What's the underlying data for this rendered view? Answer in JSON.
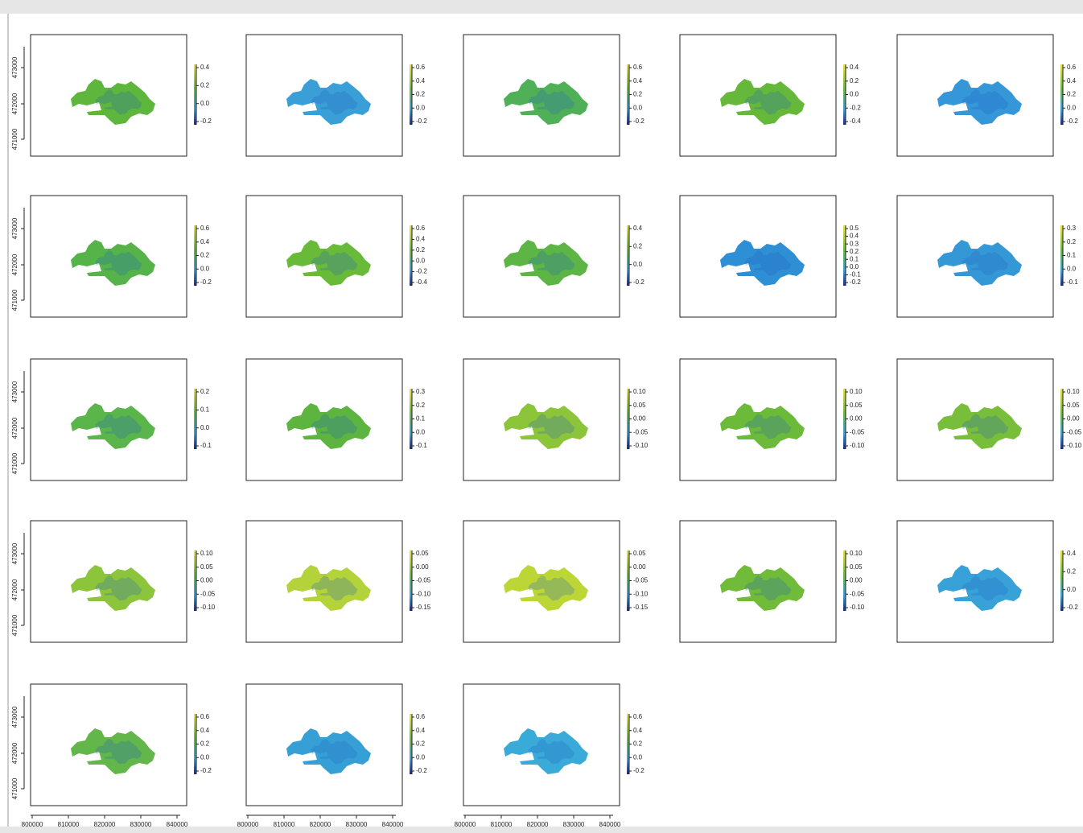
{
  "y_axis_labels": [
    "471000",
    "472000",
    "473000"
  ],
  "x_axis_labels": [
    "800000",
    "810000",
    "820000",
    "830000",
    "840000"
  ],
  "panels": [
    {
      "legend_ticks": [
        "0.4",
        "0.2",
        "0.0",
        "-0.2"
      ],
      "color": "#5fb63c"
    },
    {
      "legend_ticks": [
        "0.6",
        "0.4",
        "0.2",
        "0.0",
        "-0.2"
      ],
      "color": "#3a9fd6"
    },
    {
      "legend_ticks": [
        "0.6",
        "0.4",
        "0.2",
        "0.0",
        "-0.2"
      ],
      "color": "#4fb058"
    },
    {
      "legend_ticks": [
        "0.4",
        "0.2",
        "0.0",
        "-0.2",
        "-0.4"
      ],
      "color": "#66b83a"
    },
    {
      "legend_ticks": [
        "0.6",
        "0.4",
        "0.2",
        "0.0",
        "-0.2"
      ],
      "color": "#3596d8"
    },
    {
      "legend_ticks": [
        "0.6",
        "0.4",
        "0.2",
        "0.0",
        "-0.2"
      ],
      "color": "#55b34a"
    },
    {
      "legend_ticks": [
        "0.6",
        "0.4",
        "0.2",
        "0.0",
        "-0.2",
        "-0.4"
      ],
      "color": "#6aba3a"
    },
    {
      "legend_ticks": [
        "0.4",
        "0.2",
        "0.0",
        "-0.2"
      ],
      "color": "#5db546"
    },
    {
      "legend_ticks": [
        "0.5",
        "0.4",
        "0.3",
        "0.2",
        "0.1",
        "0.0",
        "-0.1",
        "-0.2"
      ],
      "color": "#2f8fd4"
    },
    {
      "legend_ticks": [
        "0.3",
        "0.2",
        "0.1",
        "0.0",
        "-0.1"
      ],
      "color": "#3598d6"
    },
    {
      "legend_ticks": [
        "0.2",
        "0.1",
        "0.0",
        "-0.1"
      ],
      "color": "#5ab54a"
    },
    {
      "legend_ticks": [
        "0.3",
        "0.2",
        "0.1",
        "0.0",
        "-0.1"
      ],
      "color": "#5db540"
    },
    {
      "legend_ticks": [
        "0.10",
        "0.05",
        "0.00",
        "-0.05",
        "-0.10"
      ],
      "color": "#8cc43a"
    },
    {
      "legend_ticks": [
        "0.10",
        "0.05",
        "0.00",
        "-0.05",
        "-0.10"
      ],
      "color": "#6cba3a"
    },
    {
      "legend_ticks": [
        "0.10",
        "0.05",
        "0.00",
        "-0.05",
        "-0.10"
      ],
      "color": "#78be3a"
    },
    {
      "legend_ticks": [
        "0.10",
        "0.05",
        "0.00",
        "-0.05",
        "-0.10"
      ],
      "color": "#8cc43c"
    },
    {
      "legend_ticks": [
        "0.05",
        "0.00",
        "-0.05",
        "-0.10",
        "-0.15"
      ],
      "color": "#b4d23a"
    },
    {
      "legend_ticks": [
        "0.05",
        "0.00",
        "-0.05",
        "-0.10",
        "-0.15"
      ],
      "color": "#bcd636"
    },
    {
      "legend_ticks": [
        "0.10",
        "0.05",
        "0.00",
        "-0.05",
        "-0.10"
      ],
      "color": "#70bb3a"
    },
    {
      "legend_ticks": [
        "0.4",
        "0.2",
        "0.0",
        "-0.2"
      ],
      "color": "#38a2d8"
    },
    {
      "legend_ticks": [
        "0.6",
        "0.4",
        "0.2",
        "0.0",
        "-0.2"
      ],
      "color": "#62b64a"
    },
    {
      "legend_ticks": [
        "0.6",
        "0.4",
        "0.2",
        "0.0",
        "-0.2"
      ],
      "color": "#36a0d6"
    },
    {
      "legend_ticks": [
        "0.6",
        "0.4",
        "0.2",
        "0.0",
        "-0.2"
      ],
      "color": "#3aaad8"
    }
  ]
}
